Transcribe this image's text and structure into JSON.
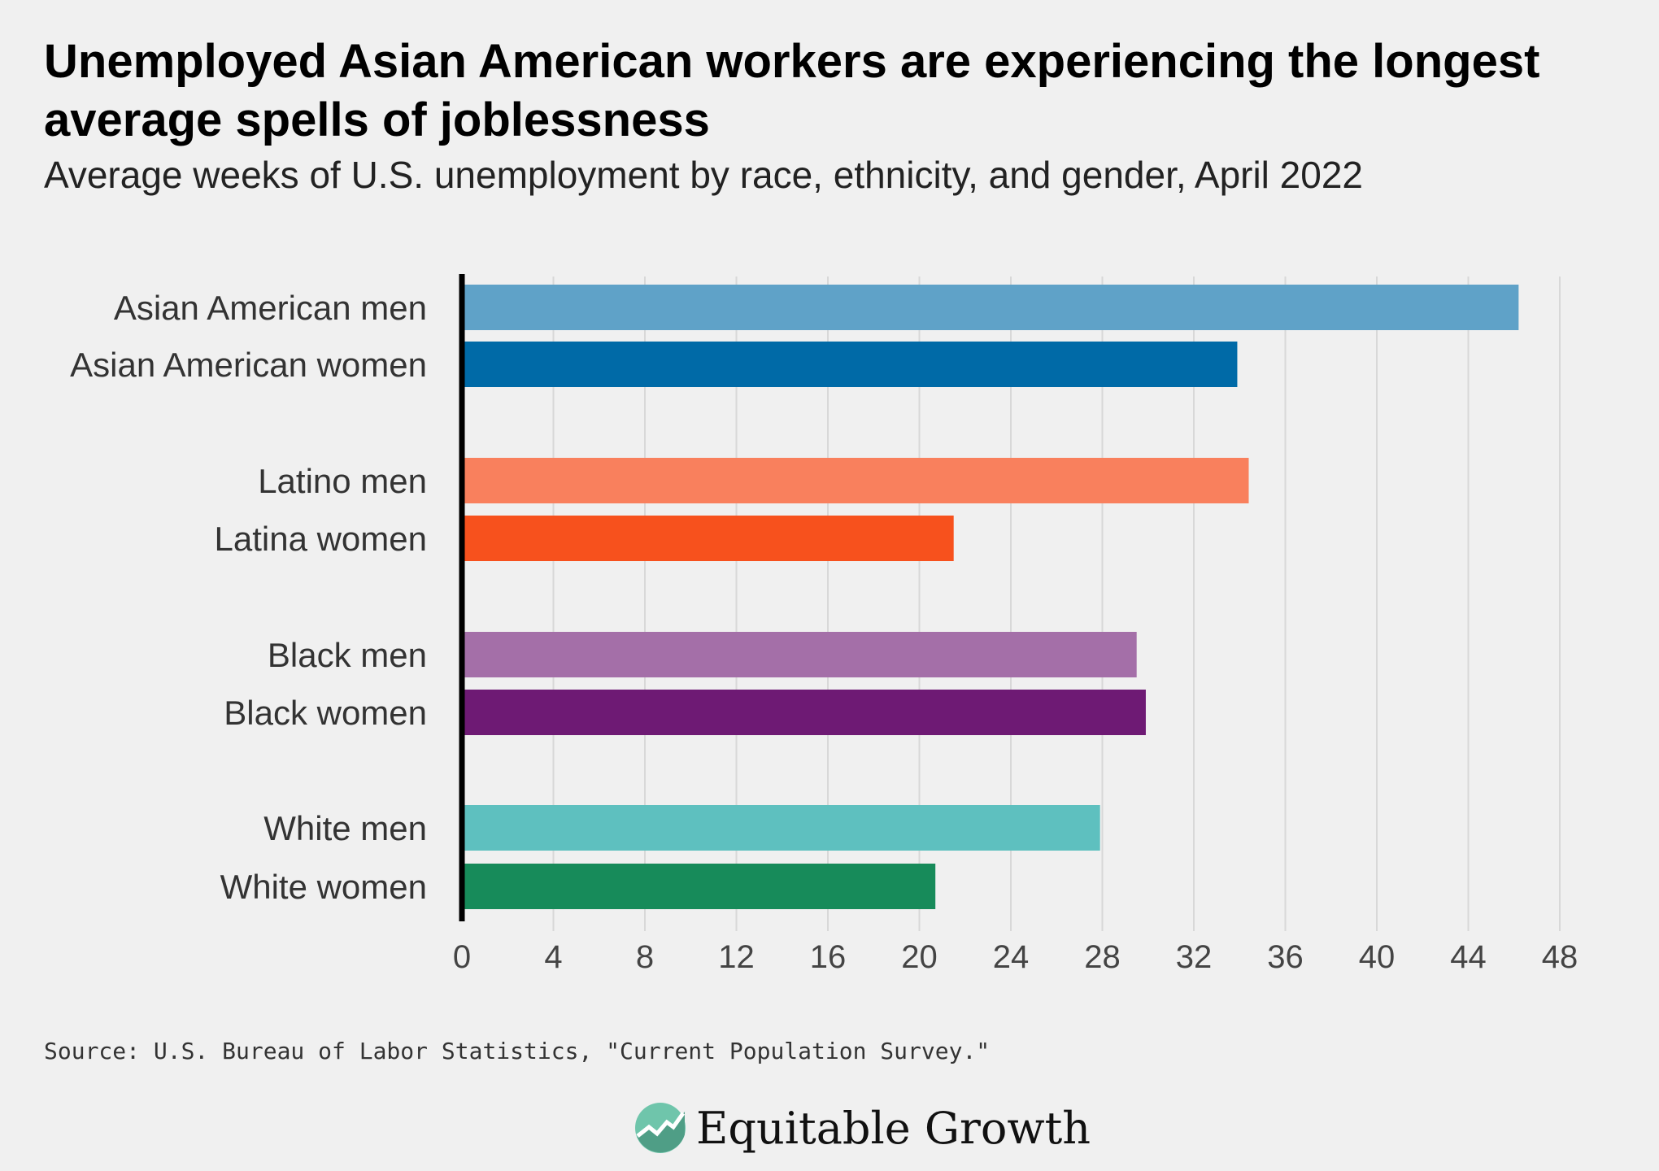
{
  "chart_data": {
    "type": "bar",
    "orientation": "horizontal",
    "title": "Unemployed Asian American workers are experiencing the longest average spells of joblessness",
    "subtitle": "Average weeks of U.S. unemployment by race, ethnicity, and gender, April 2022",
    "categories": [
      "Asian American men",
      "Asian American women",
      "Latino men",
      "Latina women",
      "Black men",
      "Black women",
      "White men",
      "White women"
    ],
    "values": [
      46.2,
      33.9,
      34.4,
      21.5,
      29.5,
      29.9,
      27.9,
      20.7
    ],
    "colors": [
      "#5fa2c8",
      "#006aa7",
      "#f9805d",
      "#f7511d",
      "#a46fa8",
      "#6e1a74",
      "#5ec0bf",
      "#178b5a"
    ],
    "xlim": [
      0,
      48
    ],
    "xticks": [
      0,
      4,
      8,
      12,
      16,
      20,
      24,
      28,
      32,
      36,
      40,
      44,
      48
    ],
    "grid": true,
    "xlabel": "",
    "ylabel": ""
  },
  "source": "Source: U.S. Bureau of Labor Statistics, \"Current Population Survey.\"",
  "logo": {
    "text": "Equitable Growth",
    "color": "#6fc5ab"
  }
}
